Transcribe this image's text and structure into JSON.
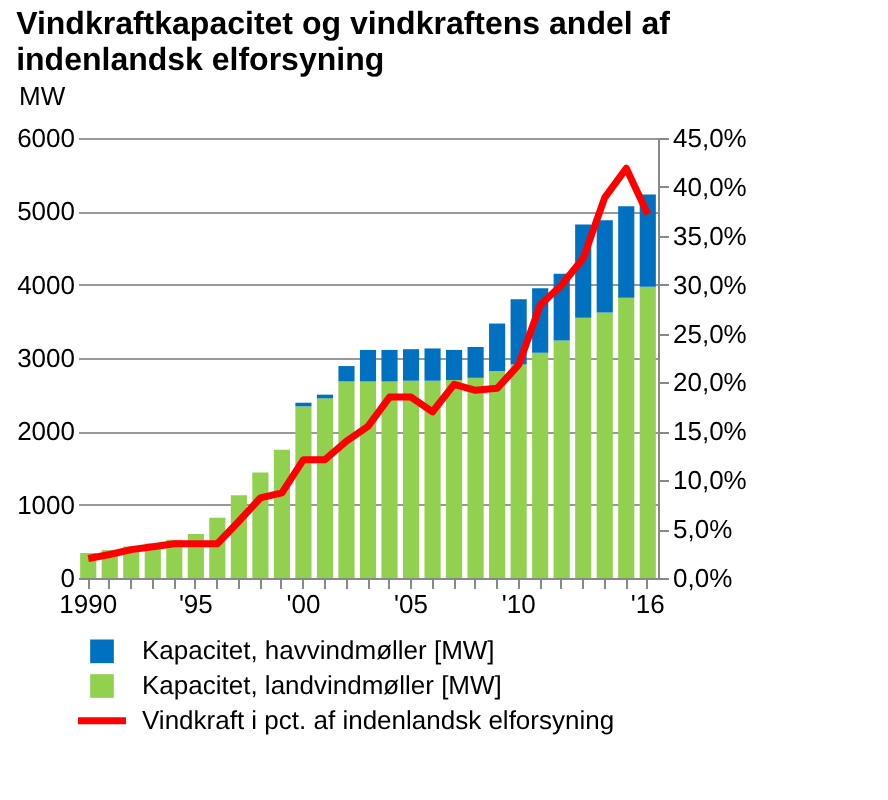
{
  "chart_data": {
    "type": "bar",
    "title": "Vindkraftkapacitet og vindkraftens andel af indenlandsk elforsyning",
    "ylabel": "MW",
    "categories": [
      "1990",
      null,
      null,
      null,
      null,
      "'95",
      null,
      null,
      null,
      null,
      "'00",
      null,
      null,
      null,
      null,
      "'05",
      null,
      null,
      null,
      null,
      "'10",
      null,
      null,
      null,
      null,
      null,
      "'16"
    ],
    "stacked": true,
    "series": [
      {
        "name": "Kapacitet, landvindmøller [MW]",
        "color": "#92d050",
        "values": [
          340,
          380,
          430,
          470,
          520,
          600,
          820,
          1130,
          1440,
          1750,
          2340,
          2450,
          2680,
          2680,
          2680,
          2690,
          2690,
          2700,
          2730,
          2820,
          2910,
          3070,
          3240,
          3550,
          3620,
          3820,
          3970
        ]
      },
      {
        "name": "Kapacitet, havvindmøller [MW]",
        "color": "#0070c0",
        "values": [
          0,
          0,
          0,
          0,
          0,
          0,
          0,
          0,
          0,
          0,
          50,
          50,
          210,
          430,
          430,
          430,
          440,
          410,
          420,
          650,
          890,
          880,
          910,
          1270,
          1260,
          1250,
          1260
        ]
      },
      {
        "name": "Vindkraft i pct. af indenlandsk elforsyning",
        "color": "#ff0000",
        "type": "line",
        "axis": "y2",
        "values": [
          2.0,
          2.4,
          2.9,
          3.2,
          3.5,
          3.5,
          3.5,
          5.8,
          8.2,
          8.7,
          12.1,
          12.1,
          14.0,
          15.5,
          18.5,
          18.5,
          17.0,
          19.8,
          19.2,
          19.4,
          21.8,
          27.9,
          30.0,
          32.7,
          38.9,
          41.9,
          37.2
        ]
      }
    ],
    "ylim": [
      0,
      6000
    ],
    "yticks": [
      0,
      1000,
      2000,
      3000,
      4000,
      5000,
      6000
    ],
    "y2lim": [
      0,
      45
    ],
    "y2ticks": [
      {
        "value": 0,
        "label": "0,0%"
      },
      {
        "value": 5,
        "label": "5,0%"
      },
      {
        "value": 10,
        "label": "10,0%"
      },
      {
        "value": 15,
        "label": "15,0%"
      },
      {
        "value": 20,
        "label": "20,0%"
      },
      {
        "value": 25,
        "label": "25,0%"
      },
      {
        "value": 30,
        "label": "30,0%"
      },
      {
        "value": 35,
        "label": "35,0%"
      },
      {
        "value": 40,
        "label": "40,0%"
      },
      {
        "value": 45,
        "label": "45,0%"
      }
    ],
    "grid": "y",
    "legend": "bottom",
    "marker": "none",
    "line_style": "solid"
  }
}
